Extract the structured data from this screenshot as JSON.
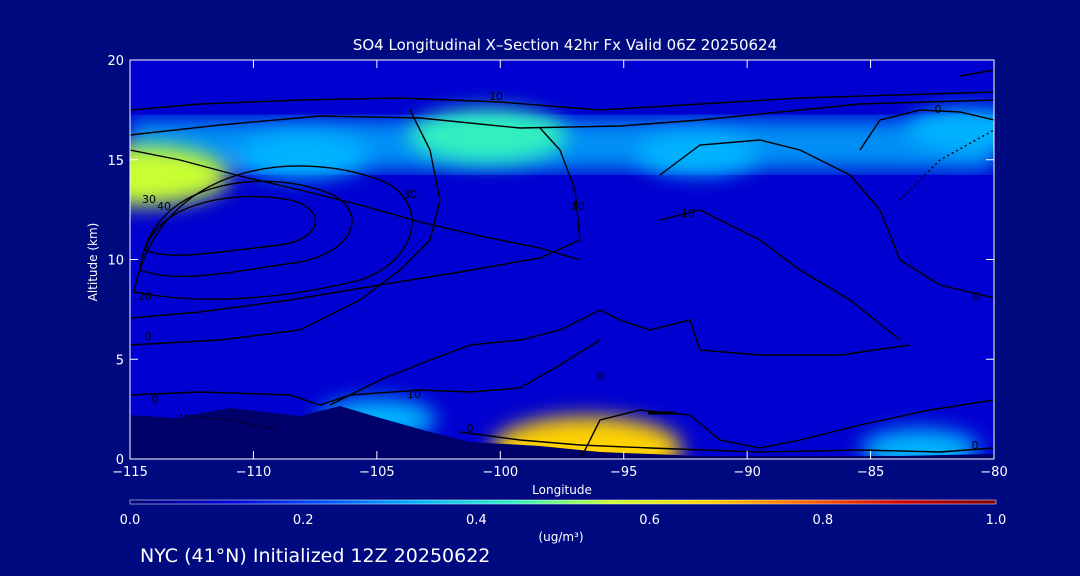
{
  "chart_data": {
    "type": "heatmap",
    "title": "SO4 Longitudinal X–Section 42hr  Fx Valid 06Z 20250624",
    "xlabel": "Longitude",
    "ylabel": "Altitude (km)",
    "xlim": [
      -115,
      -80
    ],
    "ylim": [
      0,
      20
    ],
    "x_ticks": [
      -115,
      -110,
      -105,
      -100,
      -95,
      -90,
      -85,
      -80
    ],
    "x_tick_labels": [
      "−115",
      "−110",
      "−105",
      "−100",
      "−95",
      "−90",
      "−85",
      "−80"
    ],
    "y_ticks": [
      0,
      5,
      10,
      15,
      20
    ],
    "y_tick_labels": [
      "0",
      "5",
      "10",
      "15",
      "20"
    ],
    "colorbar": {
      "min": 0.0,
      "max": 1.0,
      "ticks": [
        0.0,
        0.2,
        0.4,
        0.6,
        0.8,
        1.0
      ],
      "tick_labels": [
        "0.0",
        "0.2",
        "0.4",
        "0.6",
        "0.8",
        "1.0"
      ],
      "units": "(ug/m³)",
      "colors": [
        "#00007a",
        "#0000d0",
        "#0050ff",
        "#00b4ff",
        "#30f0c0",
        "#c8ff30",
        "#ffd200",
        "#ff6400",
        "#d00000",
        "#800000"
      ]
    },
    "field": {
      "background_value": 0.14,
      "plumes": [
        {
          "lon": -114.5,
          "alt": 14.2,
          "value": 0.55
        },
        {
          "lon": -100.5,
          "alt": 16.2,
          "value": 0.48
        },
        {
          "lon": -96.5,
          "alt": 0.5,
          "value": 0.62
        },
        {
          "lon": -108.0,
          "alt": 15.2,
          "value": 0.36
        },
        {
          "lon": -92.0,
          "alt": 15.3,
          "value": 0.32
        },
        {
          "lon": -81.0,
          "alt": 16.5,
          "value": 0.34
        },
        {
          "lon": -83.0,
          "alt": 0.5,
          "value": 0.3
        },
        {
          "lon": -105.0,
          "alt": 2.0,
          "value": 0.3
        }
      ]
    },
    "contour_labels": [
      "10",
      "0",
      "30",
      "40",
      "30",
      "10",
      "10",
      "0",
      "20",
      "10",
      "0",
      "0",
      "0",
      "0",
      "0"
    ],
    "grid": false,
    "colors": {
      "background": "#000a80",
      "text": "#ffffff",
      "contours": "#000000",
      "terrain": "#00006a"
    }
  },
  "footer": "NYC (41°N) Initialized 12Z 20250622"
}
